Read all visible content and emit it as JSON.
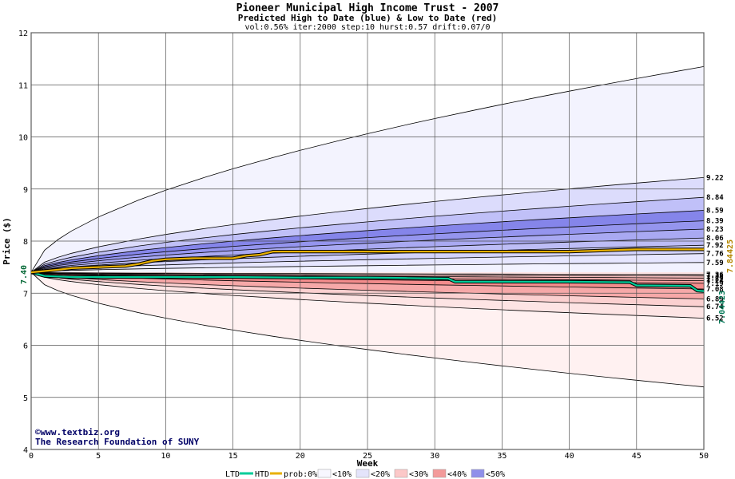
{
  "chart_data": {
    "type": "area",
    "title": "Pioneer Municipal High Income Trust - 2007",
    "subtitle": "Predicted High to Date (blue) &  Low to Date (red)",
    "params": "vol:0.56% iter:2000 step:10 hurst:0.57 drift:0.07/0",
    "xlabel": "Week",
    "ylabel": "Price ($)",
    "xlim": [
      0,
      50
    ],
    "ylim": [
      4,
      12
    ],
    "x_ticks": [
      "0",
      "5",
      "10",
      "15",
      "20",
      "25",
      "30",
      "35",
      "40",
      "45",
      "50"
    ],
    "y_ticks": [
      "4",
      "5",
      "6",
      "7",
      "8",
      "9",
      "10",
      "11",
      "12"
    ],
    "grid": true,
    "start_price": 7.4,
    "start_label": "7.40",
    "weeks": [
      0,
      1,
      2,
      3,
      5,
      8,
      10,
      13,
      15,
      18,
      20,
      23,
      25,
      28,
      30,
      33,
      35,
      38,
      40,
      43,
      45,
      48,
      50
    ],
    "high_bands": [
      {
        "label": "7.59",
        "color": "#f2f2ff",
        "end": 7.59
      },
      {
        "label": "7.76",
        "color": "#e6e6ff",
        "end": 7.76
      },
      {
        "label": "7.92",
        "color": "#d2d2fa",
        "end": 7.92
      },
      {
        "label": "8.06",
        "color": "#bdbdf6",
        "end": 8.06
      },
      {
        "label": "8.23",
        "color": "#a9a9f2",
        "end": 8.23
      },
      {
        "label": "8.39",
        "color": "#9595ee",
        "end": 8.39
      },
      {
        "label": "8.59",
        "color": "#8585ea",
        "end": 8.59
      },
      {
        "label": "8.84",
        "color": "#c0c0f8",
        "end": 8.84
      },
      {
        "label": "9.22",
        "color": "#dcdcfc",
        "end": 9.22
      },
      {
        "label": "",
        "color": "#f3f3fe",
        "end": 11.35
      }
    ],
    "low_bands": [
      {
        "label": "7.36",
        "color": "#ffe8e8",
        "end": 7.36
      },
      {
        "label": "7.33",
        "color": "#fdd4d4",
        "end": 7.33
      },
      {
        "label": "7.29",
        "color": "#fcc2c2",
        "end": 7.29
      },
      {
        "label": "7.24",
        "color": "#f9b0b0",
        "end": 7.24
      },
      {
        "label": "7.19",
        "color": "#f69e9e",
        "end": 7.19
      },
      {
        "label": "7.08",
        "color": "#f38c8c",
        "end": 7.08
      },
      {
        "label": "6.89",
        "color": "#f6a8a8",
        "end": 6.89
      },
      {
        "label": "6.74",
        "color": "#fbd0d0",
        "end": 6.74
      },
      {
        "label": "6.52",
        "color": "#fde4e4",
        "end": 6.52
      },
      {
        "label": "",
        "color": "#fff1f1",
        "end": 5.2
      }
    ],
    "htd_series": {
      "name": "HTD",
      "color": "#e8b000",
      "end_label": "7.84425",
      "x": [
        0,
        2,
        3,
        5,
        7,
        8,
        9,
        10,
        12,
        15,
        16,
        17,
        18,
        20,
        25,
        30,
        35,
        40,
        45,
        50
      ],
      "y": [
        7.4,
        7.45,
        7.48,
        7.5,
        7.52,
        7.56,
        7.62,
        7.65,
        7.67,
        7.67,
        7.72,
        7.74,
        7.8,
        7.8,
        7.8,
        7.8,
        7.8,
        7.8,
        7.84,
        7.84
      ]
    },
    "ltd_series": {
      "name": "LTD",
      "color": "#00cc99",
      "end_label": "7.04423",
      "x": [
        0,
        1,
        3,
        5,
        10,
        15,
        20,
        25,
        28,
        31,
        31.5,
        35,
        40,
        44.5,
        45,
        49,
        49.5,
        50
      ],
      "y": [
        7.4,
        7.33,
        7.31,
        7.31,
        7.31,
        7.31,
        7.3,
        7.3,
        7.29,
        7.28,
        7.22,
        7.22,
        7.22,
        7.21,
        7.15,
        7.14,
        7.05,
        7.04
      ]
    },
    "legend": {
      "ltd": "LTD",
      "htd": "HTD",
      "prob": "prob:0%",
      "items": [
        {
          "label": "<10%",
          "color": "#f7f7ff"
        },
        {
          "label": "<20%",
          "color": "#e4e4fb"
        },
        {
          "label": "<30%",
          "color": "#fcc8c8"
        },
        {
          "label": "<40%",
          "color": "#f39a9a"
        },
        {
          "label": "<50%",
          "color": "#8f8fea"
        }
      ]
    },
    "credits": [
      "©www.textbiz.org",
      "The Research Foundation of SUNY"
    ]
  }
}
